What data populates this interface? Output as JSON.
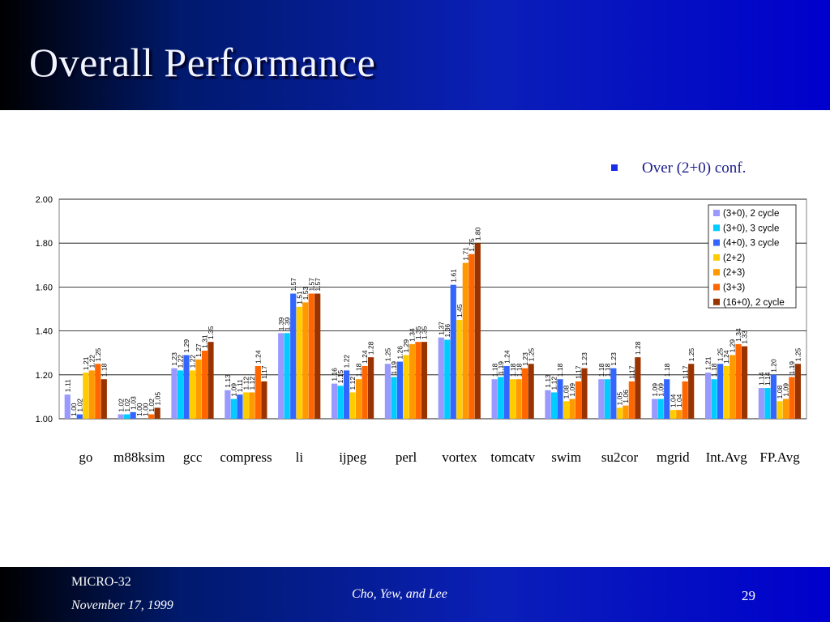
{
  "slide": {
    "title": "Overall Performance",
    "subtitle": "Over (2+0) conf.",
    "footer_conference": "MICRO-32",
    "footer_date": "November 17, 1999",
    "footer_authors": "Cho, Yew, and Lee",
    "page_number": "29",
    "header_color": "#0a1fb8"
  },
  "chart_data": {
    "type": "bar",
    "ylim": [
      1.0,
      2.0
    ],
    "yticks": [
      "1.00",
      "1.20",
      "1.40",
      "1.60",
      "1.80",
      "2.00"
    ],
    "legend_position": "top-right",
    "grid": true,
    "categories": [
      "go",
      "m88ksim",
      "gcc",
      "compress",
      "li",
      "ijpeg",
      "perl",
      "vortex",
      "tomcatv",
      "swim",
      "su2cor",
      "mgrid",
      "Int.Avg",
      "FP.Avg"
    ],
    "series": [
      {
        "name": "(3+0), 2 cycle",
        "color": "#9999ff",
        "values": [
          1.11,
          1.02,
          1.23,
          1.13,
          1.39,
          1.16,
          1.25,
          1.37,
          1.18,
          1.13,
          1.18,
          1.09,
          1.21,
          1.14
        ]
      },
      {
        "name": "(3+0), 3 cycle",
        "color": "#00ccff",
        "values": [
          1.0,
          1.02,
          1.22,
          1.09,
          1.39,
          1.15,
          1.19,
          1.36,
          1.19,
          1.12,
          1.18,
          1.09,
          1.18,
          1.14
        ]
      },
      {
        "name": "(4+0), 3 cycle",
        "color": "#3366ff",
        "values": [
          1.02,
          1.03,
          1.29,
          1.11,
          1.57,
          1.22,
          1.26,
          1.61,
          1.24,
          1.18,
          1.23,
          1.18,
          1.25,
          1.2
        ]
      },
      {
        "name": "(2+2)",
        "color": "#ffcc00",
        "values": [
          1.21,
          1.0,
          1.22,
          1.12,
          1.51,
          1.12,
          1.29,
          1.45,
          1.18,
          1.08,
          1.05,
          1.04,
          1.24,
          1.08
        ]
      },
      {
        "name": "(2+3)",
        "color": "#ff9900",
        "values": [
          1.22,
          1.0,
          1.27,
          1.12,
          1.53,
          1.18,
          1.34,
          1.71,
          1.18,
          1.09,
          1.06,
          1.04,
          1.29,
          1.09
        ]
      },
      {
        "name": "(3+3)",
        "color": "#ff6600",
        "values": [
          1.25,
          1.02,
          1.31,
          1.24,
          1.57,
          1.24,
          1.35,
          1.75,
          1.23,
          1.17,
          1.17,
          1.17,
          1.34,
          1.19
        ]
      },
      {
        "name": "(16+0), 2 cycle",
        "color": "#993300",
        "values": [
          1.18,
          1.05,
          1.35,
          1.17,
          1.57,
          1.28,
          1.35,
          1.8,
          1.25,
          1.23,
          1.28,
          1.25,
          1.33,
          1.25
        ]
      }
    ]
  }
}
